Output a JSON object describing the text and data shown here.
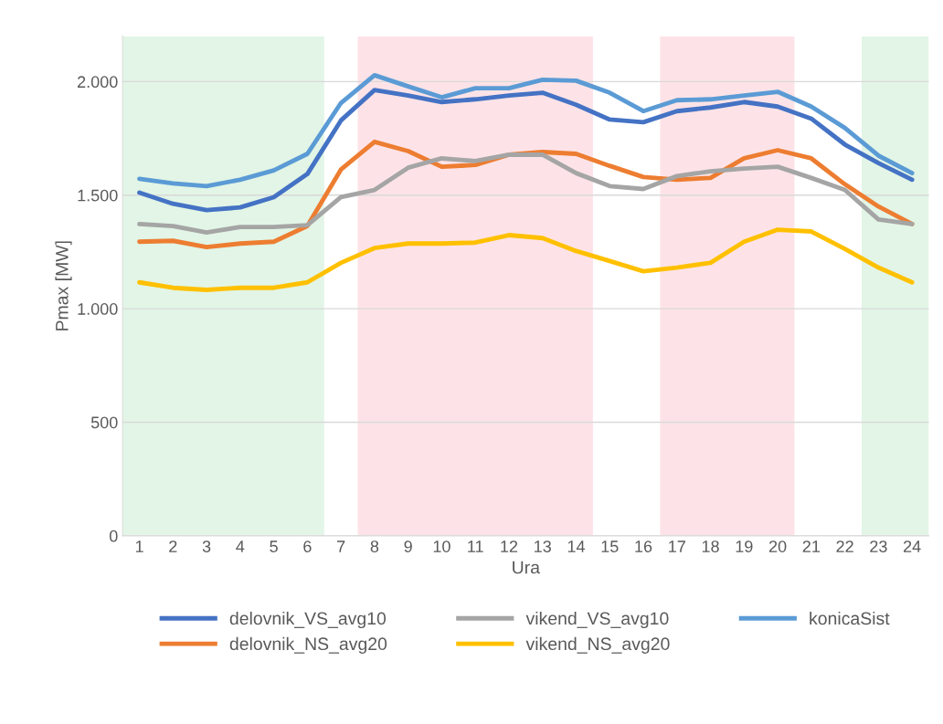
{
  "chart_data": {
    "type": "line",
    "xlabel": "Ura",
    "ylabel": "Pmax [MW]",
    "categories": [
      "1",
      "2",
      "3",
      "4",
      "5",
      "6",
      "7",
      "8",
      "9",
      "10",
      "11",
      "12",
      "13",
      "14",
      "15",
      "16",
      "17",
      "18",
      "19",
      "20",
      "21",
      "22",
      "23",
      "24"
    ],
    "series": [
      {
        "name": "delovnik_VS_avg10",
        "color": "#4472c4",
        "values": [
          1511,
          1462,
          1434,
          1446,
          1491,
          1593,
          1829,
          1963,
          1939,
          1910,
          1922,
          1939,
          1951,
          1898,
          1833,
          1821,
          1870,
          1886,
          1910,
          1890,
          1837,
          1723,
          1641,
          1568
        ]
      },
      {
        "name": "delovnik_NS_avg20",
        "color": "#ed7d31",
        "values": [
          1295,
          1299,
          1271,
          1287,
          1295,
          1364,
          1613,
          1735,
          1694,
          1625,
          1633,
          1678,
          1690,
          1682,
          1629,
          1580,
          1568,
          1576,
          1662,
          1698,
          1662,
          1548,
          1450,
          1373
        ]
      },
      {
        "name": "vikend_VS_avg10",
        "color": "#a5a5a5",
        "values": [
          1373,
          1364,
          1336,
          1360,
          1360,
          1368,
          1491,
          1523,
          1621,
          1662,
          1650,
          1678,
          1678,
          1597,
          1540,
          1527,
          1584,
          1605,
          1617,
          1625,
          1576,
          1523,
          1393,
          1373
        ]
      },
      {
        "name": "vikend_NS_avg20",
        "color": "#ffc000",
        "values": [
          1116,
          1092,
          1083,
          1092,
          1092,
          1116,
          1202,
          1267,
          1287,
          1287,
          1291,
          1324,
          1311,
          1254,
          1210,
          1165,
          1181,
          1202,
          1295,
          1348,
          1340,
          1263,
          1181,
          1116
        ]
      },
      {
        "name": "konicaSist",
        "color": "#5b9bd5",
        "values": [
          1572,
          1552,
          1540,
          1568,
          1609,
          1682,
          1906,
          2028,
          1979,
          1931,
          1971,
          1971,
          2008,
          2004,
          1951,
          1870,
          1918,
          1922,
          1939,
          1955,
          1890,
          1796,
          1674,
          1597
        ]
      }
    ],
    "ylim": [
      0,
      2200
    ],
    "yticks": [
      0,
      500,
      {
        "value": 1000,
        "label": "1.000"
      },
      {
        "value": 1500,
        "label": "1.500"
      },
      {
        "value": 2000,
        "label": "2.000"
      }
    ],
    "bands": [
      {
        "axis": "x",
        "from": "1",
        "to": "6",
        "color": "#e2f5e6"
      },
      {
        "axis": "x",
        "from": "8",
        "to": "14",
        "color": "#fde3e7"
      },
      {
        "axis": "x",
        "from": "17",
        "to": "20",
        "color": "#fde3e7"
      },
      {
        "axis": "x",
        "from": "23",
        "to": "24",
        "color": "#e2f5e6"
      }
    ],
    "grid": "y",
    "legend": "bottom",
    "marker": "none",
    "line_style": "solid"
  }
}
